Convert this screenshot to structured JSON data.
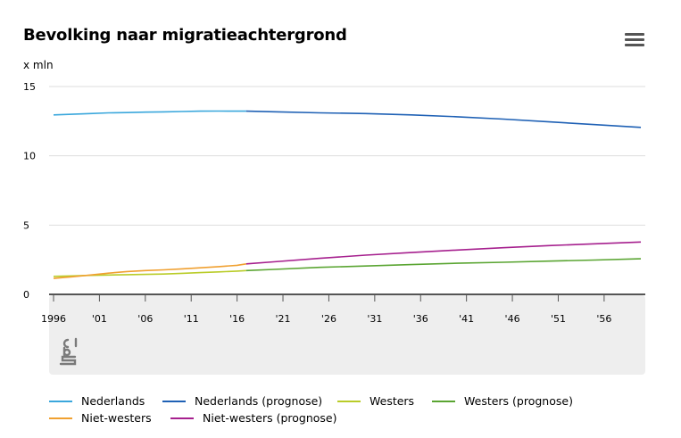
{
  "header": {
    "title": "Bevolking naar migratieachtergrond",
    "unit": "x mln",
    "menu_icon": "hamburger-menu-icon"
  },
  "colors": {
    "nederlands": "#3aa7dc",
    "nederlands_prognose": "#1f61b5",
    "westers": "#b9cc28",
    "westers_prognose": "#5aa532",
    "nietwesters": "#f0a030",
    "nietwesters_prognose": "#a6208e",
    "grid": "#dddddd",
    "axis": "#555555",
    "footer_bg": "#eeeeee",
    "logo": "#7a7a7a"
  },
  "footer": {
    "logo_icon": "cbs-logo-icon"
  },
  "chart_data": {
    "type": "line",
    "title": "Bevolking naar migratieachtergrond",
    "ylabel": "x mln",
    "xlabel": "",
    "xlim": [
      1996,
      2060
    ],
    "ylim": [
      0,
      15
    ],
    "yticks": [
      0,
      5,
      10,
      15
    ],
    "ytick_labels": [
      "0",
      "5",
      "10",
      "15"
    ],
    "xticks": [
      1996,
      2001,
      2006,
      2011,
      2016,
      2021,
      2026,
      2031,
      2036,
      2041,
      2046,
      2051,
      2056
    ],
    "xtick_labels": [
      "1996",
      "'01",
      "'06",
      "'11",
      "'16",
      "'21",
      "'26",
      "'31",
      "'36",
      "'41",
      "'46",
      "'51",
      "'56"
    ],
    "grid": true,
    "legend_position": "bottom",
    "series": [
      {
        "key": "nederlands",
        "name": "Nederlands",
        "x": [
          1996,
          1998,
          2000,
          2002,
          2004,
          2006,
          2008,
          2010,
          2012,
          2014,
          2016,
          2017
        ],
        "y": [
          12.95,
          13.0,
          13.05,
          13.1,
          13.12,
          13.15,
          13.17,
          13.2,
          13.22,
          13.23,
          13.22,
          13.22
        ]
      },
      {
        "key": "nederlands_prognose",
        "name": "Nederlands (prognose)",
        "x": [
          2017,
          2020,
          2025,
          2030,
          2035,
          2040,
          2045,
          2050,
          2055,
          2060
        ],
        "y": [
          13.22,
          13.18,
          13.1,
          13.05,
          12.95,
          12.82,
          12.65,
          12.45,
          12.25,
          12.05
        ]
      },
      {
        "key": "westers",
        "name": "Westers",
        "x": [
          1996,
          1998,
          2000,
          2002,
          2004,
          2006,
          2008,
          2010,
          2012,
          2014,
          2016,
          2017
        ],
        "y": [
          1.3,
          1.33,
          1.37,
          1.4,
          1.42,
          1.44,
          1.47,
          1.52,
          1.57,
          1.62,
          1.68,
          1.72
        ]
      },
      {
        "key": "westers_prognose",
        "name": "Westers (prognose)",
        "x": [
          2017,
          2020,
          2025,
          2030,
          2035,
          2040,
          2045,
          2050,
          2055,
          2060
        ],
        "y": [
          1.72,
          1.8,
          1.95,
          2.05,
          2.15,
          2.25,
          2.32,
          2.4,
          2.48,
          2.57
        ]
      },
      {
        "key": "nietwesters",
        "name": "Niet-westers",
        "x": [
          1996,
          1998,
          2000,
          2002,
          2004,
          2006,
          2008,
          2010,
          2012,
          2014,
          2016,
          2017
        ],
        "y": [
          1.15,
          1.27,
          1.4,
          1.53,
          1.65,
          1.72,
          1.77,
          1.84,
          1.92,
          2.0,
          2.1,
          2.2
        ]
      },
      {
        "key": "nietwesters_prognose",
        "name": "Niet-westers (prognose)",
        "x": [
          2017,
          2020,
          2025,
          2030,
          2035,
          2040,
          2045,
          2050,
          2055,
          2060
        ],
        "y": [
          2.2,
          2.35,
          2.6,
          2.83,
          3.02,
          3.2,
          3.37,
          3.52,
          3.65,
          3.78
        ]
      }
    ]
  },
  "legend": {
    "items": [
      {
        "key": "nederlands",
        "label": "Nederlands"
      },
      {
        "key": "nederlands_prognose",
        "label": "Nederlands (prognose)"
      },
      {
        "key": "westers",
        "label": "Westers"
      },
      {
        "key": "westers_prognose",
        "label": "Westers (prognose)"
      },
      {
        "key": "nietwesters",
        "label": "Niet-westers"
      },
      {
        "key": "nietwesters_prognose",
        "label": "Niet-westers (prognose)"
      }
    ]
  }
}
